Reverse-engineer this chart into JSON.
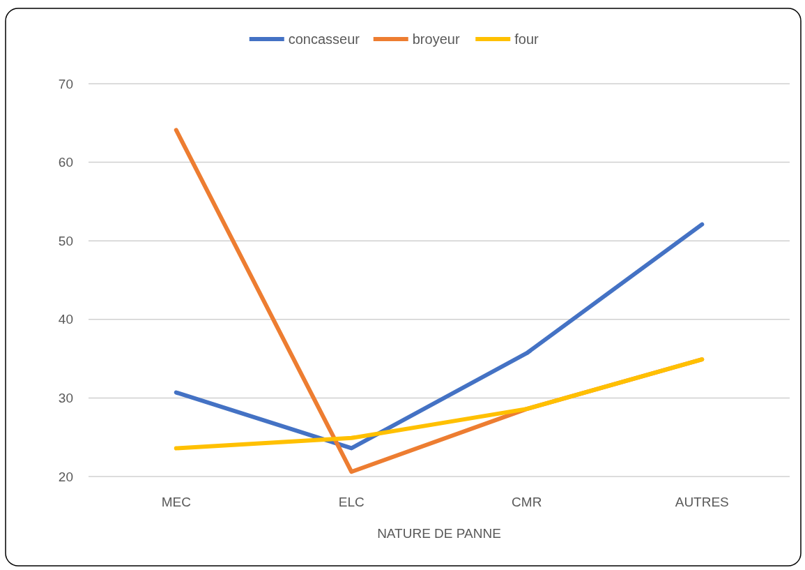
{
  "chart_data": {
    "type": "line",
    "xlabel": "NATURE DE PANNE",
    "categories": [
      "MEC",
      "ELC",
      "CMR",
      "AUTRES"
    ],
    "series": [
      {
        "name": "concasseur",
        "color": "#4472c4",
        "values": [
          30.7,
          23.6,
          35.7,
          52.1
        ]
      },
      {
        "name": "broyeur",
        "color": "#ed7d31",
        "values": [
          64.1,
          20.6,
          28.6,
          34.9
        ]
      },
      {
        "name": "four",
        "color": "#ffc000",
        "values": [
          23.6,
          24.9,
          28.6,
          34.9
        ]
      }
    ],
    "ylim": [
      20,
      70
    ],
    "yticks": [
      20,
      30,
      40,
      50,
      60,
      70
    ],
    "grid": "y",
    "legend": "top",
    "marker": "none",
    "line_style": "solid"
  }
}
